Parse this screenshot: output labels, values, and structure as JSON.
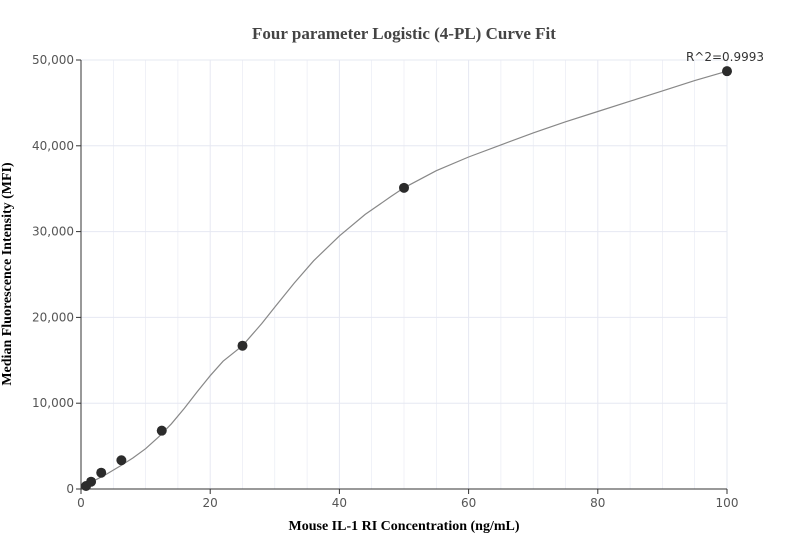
{
  "chart_data": {
    "type": "scatter",
    "title": "Four parameter Logistic (4-PL) Curve Fit",
    "xlabel": "Mouse IL-1 RI Concentration (ng/mL)",
    "ylabel": "Median Fluorescence Intensity (MFI)",
    "xlim": [
      0,
      100
    ],
    "ylim": [
      0,
      50000
    ],
    "x_ticks": [
      0,
      20,
      40,
      60,
      80,
      100
    ],
    "y_ticks": [
      0,
      10000,
      20000,
      30000,
      40000,
      50000
    ],
    "x_tick_labels": [
      "0",
      "20",
      "40",
      "60",
      "80",
      "100"
    ],
    "y_tick_labels": [
      "0",
      "10,000",
      "20,000",
      "30,000",
      "40,000",
      "50,000"
    ],
    "annotation": "R^2=0.9993",
    "grid": true,
    "points": [
      {
        "x": 0.78,
        "y": 350
      },
      {
        "x": 1.56,
        "y": 850
      },
      {
        "x": 3.13,
        "y": 1900
      },
      {
        "x": 6.25,
        "y": 3350
      },
      {
        "x": 12.5,
        "y": 6800
      },
      {
        "x": 25,
        "y": 16700
      },
      {
        "x": 50,
        "y": 35100
      },
      {
        "x": 100,
        "y": 48700
      }
    ],
    "fit_curve": [
      [
        0.5,
        250
      ],
      [
        2,
        950
      ],
      [
        4,
        1750
      ],
      [
        6,
        2650
      ],
      [
        8,
        3600
      ],
      [
        10,
        4700
      ],
      [
        12,
        6050
      ],
      [
        14,
        7600
      ],
      [
        16,
        9400
      ],
      [
        18,
        11350
      ],
      [
        20,
        13200
      ],
      [
        22,
        14900
      ],
      [
        25,
        16700
      ],
      [
        28,
        19300
      ],
      [
        30,
        21200
      ],
      [
        33,
        24000
      ],
      [
        36,
        26600
      ],
      [
        40,
        29500
      ],
      [
        44,
        32000
      ],
      [
        48,
        34100
      ],
      [
        50,
        35100
      ],
      [
        55,
        37100
      ],
      [
        60,
        38700
      ],
      [
        65,
        40100
      ],
      [
        70,
        41500
      ],
      [
        75,
        42800
      ],
      [
        80,
        44000
      ],
      [
        85,
        45200
      ],
      [
        90,
        46400
      ],
      [
        95,
        47600
      ],
      [
        100,
        48700
      ]
    ],
    "colors": {
      "point": "#2b2b2b",
      "curve": "#888888",
      "grid": "#e6e8f2",
      "axis": "#333333"
    }
  }
}
